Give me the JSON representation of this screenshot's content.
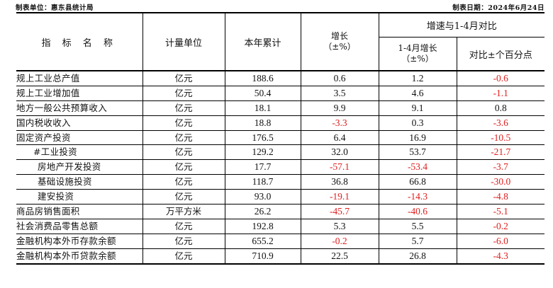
{
  "header_meta": {
    "left": "制表单位：惠东县统计局",
    "right": "制表日期：2024年6月24日"
  },
  "columns": {
    "indicator": "指 标 名 称",
    "unit": "计量单位",
    "cumulative": "本年累计",
    "growth": "增长",
    "growth_sub": "（±%）",
    "compare_group": "增速与1-4月对比",
    "growth_jan_apr": "1-4月增长",
    "growth_jan_apr_sub": "（±%）",
    "diff_points": "对比±个百分点"
  },
  "colors": {
    "negative": "#e02020",
    "positive": "#111111"
  },
  "rows": [
    {
      "name": "规上工业总产值",
      "indent": 0,
      "unit": "亿元",
      "cumulative": "188.6",
      "growth": "0.6",
      "growth_jan_apr": "1.2",
      "diff": "-0.6"
    },
    {
      "name": "规上工业增加值",
      "indent": 0,
      "unit": "亿元",
      "cumulative": "50.4",
      "growth": "3.5",
      "growth_jan_apr": "4.6",
      "diff": "-1.1"
    },
    {
      "name": "地方一般公共预算收入",
      "indent": 0,
      "unit": "亿元",
      "cumulative": "18.1",
      "growth": "9.9",
      "growth_jan_apr": "9.1",
      "diff": "0.8"
    },
    {
      "name": "国内税收收入",
      "indent": 0,
      "unit": "亿元",
      "cumulative": "18.8",
      "growth": "-3.3",
      "growth_jan_apr": "0.3",
      "diff": "-3.6"
    },
    {
      "name": "固定资产投资",
      "indent": 0,
      "unit": "亿元",
      "cumulative": "176.5",
      "growth": "6.4",
      "growth_jan_apr": "16.9",
      "diff": "-10.5"
    },
    {
      "name": "#工业投资",
      "indent": 1,
      "unit": "亿元",
      "cumulative": "129.2",
      "growth": "32.0",
      "growth_jan_apr": "53.7",
      "diff": "-21.7"
    },
    {
      "name": "房地产开发投资",
      "indent": 2,
      "unit": "亿元",
      "cumulative": "17.7",
      "growth": "-57.1",
      "growth_jan_apr": "-53.4",
      "diff": "-3.7"
    },
    {
      "name": "基础设施投资",
      "indent": 2,
      "unit": "亿元",
      "cumulative": "118.7",
      "growth": "36.8",
      "growth_jan_apr": "66.8",
      "diff": "-30.0"
    },
    {
      "name": "建安投资",
      "indent": 2,
      "unit": "亿元",
      "cumulative": "93.0",
      "growth": "-19.1",
      "growth_jan_apr": "-14.3",
      "diff": "-4.8"
    },
    {
      "name": "商品房销售面积",
      "indent": 0,
      "unit": "万平方米",
      "cumulative": "26.2",
      "growth": "-45.7",
      "growth_jan_apr": "-40.6",
      "diff": "-5.1"
    },
    {
      "name": "社会消费品零售总额",
      "indent": 0,
      "unit": "亿元",
      "cumulative": "192.8",
      "growth": "5.3",
      "growth_jan_apr": "5.5",
      "diff": "-0.2"
    },
    {
      "name": "金融机构本外币存款余额",
      "indent": 0,
      "unit": "亿元",
      "cumulative": "655.2",
      "growth": "-0.2",
      "growth_jan_apr": "5.7",
      "diff": "-6.0"
    },
    {
      "name": "金融机构本外币贷款余额",
      "indent": 0,
      "unit": "亿元",
      "cumulative": "710.9",
      "growth": "22.5",
      "growth_jan_apr": "26.8",
      "diff": "-4.3"
    }
  ]
}
